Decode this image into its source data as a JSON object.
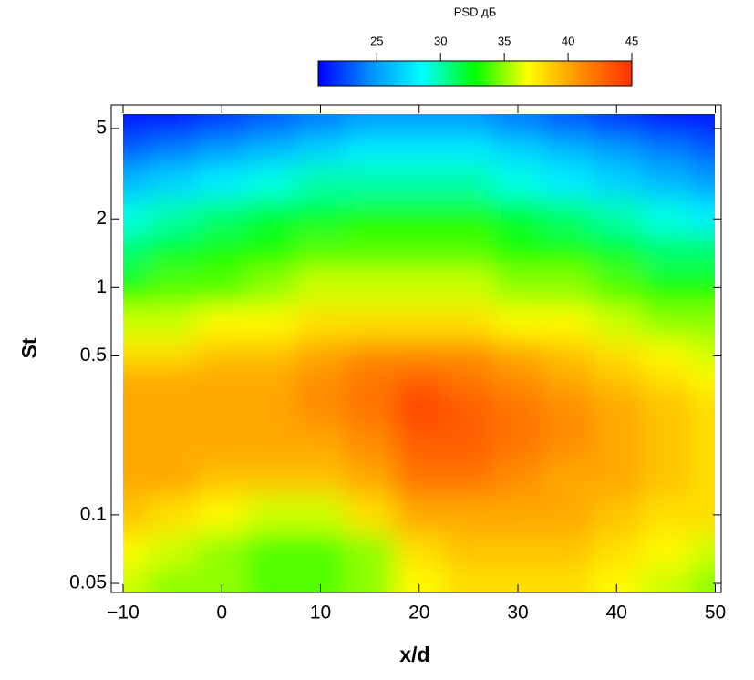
{
  "chart_data": {
    "type": "heatmap",
    "xlabel": "x/d",
    "ylabel": "St",
    "colorbar_label": "PSD,дБ",
    "x": [
      -10,
      -5,
      0,
      5,
      10,
      15,
      20,
      25,
      30,
      35,
      40,
      45,
      50
    ],
    "y": [
      0.05,
      0.07,
      0.1,
      0.15,
      0.2,
      0.3,
      0.4,
      0.5,
      0.7,
      1,
      1.5,
      2,
      3,
      4,
      5.5
    ],
    "z": [
      [
        36,
        35,
        35,
        34,
        34,
        35,
        37,
        38,
        38,
        38,
        37,
        36,
        35
      ],
      [
        37,
        36,
        35,
        34,
        34,
        35,
        38,
        39,
        39,
        39,
        38,
        37,
        36
      ],
      [
        39,
        38,
        37,
        36,
        36,
        38,
        40,
        40,
        40,
        40,
        39,
        38,
        38
      ],
      [
        40,
        40,
        39,
        39,
        39,
        40,
        42,
        42,
        41,
        40,
        40,
        39,
        38
      ],
      [
        40,
        40,
        40,
        40,
        40,
        41,
        43,
        43,
        42,
        41,
        40,
        39,
        38
      ],
      [
        40,
        40,
        40,
        40,
        41,
        42,
        44,
        43,
        42,
        41,
        40,
        39,
        38
      ],
      [
        40,
        40,
        40,
        40,
        41,
        42,
        43,
        42,
        41,
        40,
        39,
        38,
        37
      ],
      [
        38,
        38,
        39,
        39,
        40,
        41,
        41,
        41,
        40,
        39,
        38,
        37,
        36
      ],
      [
        36,
        36,
        37,
        37,
        38,
        38,
        38,
        38,
        37,
        37,
        36,
        35,
        35
      ],
      [
        33,
        34,
        34,
        35,
        36,
        36,
        36,
        36,
        35,
        35,
        34,
        33,
        33
      ],
      [
        31,
        32,
        33,
        33,
        34,
        34,
        34,
        34,
        33,
        33,
        32,
        31,
        31
      ],
      [
        29,
        30,
        31,
        32,
        32,
        33,
        33,
        33,
        32,
        31,
        30,
        29,
        28
      ],
      [
        26,
        27,
        28,
        29,
        30,
        30,
        30,
        30,
        29,
        28,
        27,
        26,
        25
      ],
      [
        23,
        24,
        25,
        26,
        27,
        28,
        28,
        28,
        27,
        26,
        25,
        24,
        23
      ],
      [
        21,
        21,
        22,
        23,
        24,
        25,
        25,
        25,
        24,
        23,
        22,
        21,
        21
      ]
    ],
    "xlim": [
      -11.2,
      50.6
    ],
    "ylim": [
      0.0456,
      6.35
    ],
    "log_y": true,
    "xticks": [
      {
        "value": -10,
        "label": "−10"
      },
      0,
      10,
      20,
      30,
      40,
      50
    ],
    "yticks": [
      0.05,
      0.1,
      0.5,
      1,
      2,
      5
    ],
    "clim": [
      20.4,
      45
    ],
    "cticks": [
      25,
      30,
      35,
      40,
      45
    ],
    "colormap": [
      "#0000ff",
      "#0090ff",
      "#00ffff",
      "#00ff00",
      "#ffff00",
      "#ff9000",
      "#ff3000"
    ]
  }
}
